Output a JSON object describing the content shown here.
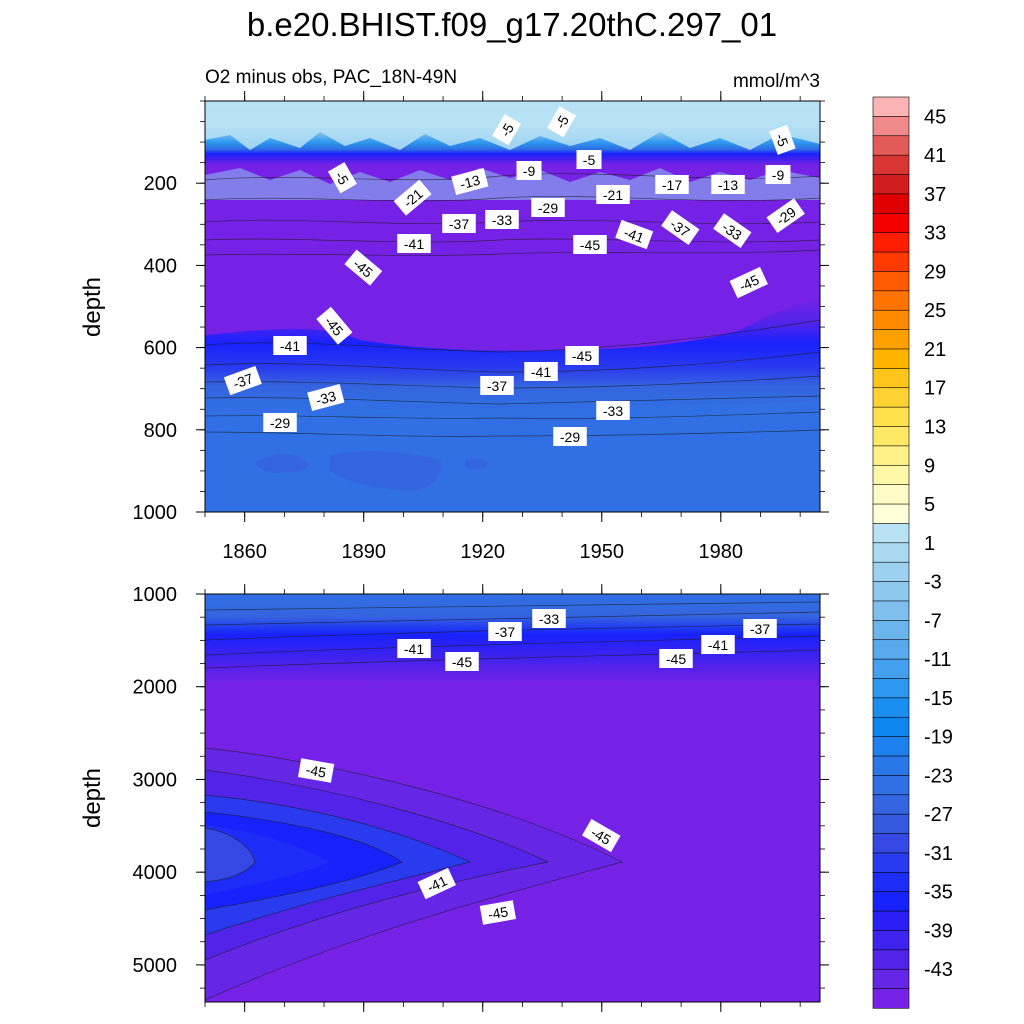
{
  "title": "b.e20.BHIST.f09_g17.20thC.297_01",
  "chart_data": {
    "type": "heatmap",
    "left_subtitle": "O2 minus obs, PAC_18N-49N",
    "right_subtitle": "mmol/m^3",
    "xlabel": "",
    "x_ticks": [
      1860,
      1890,
      1920,
      1950,
      1980
    ],
    "xlim": [
      1850,
      2005
    ],
    "colorbar": {
      "levels": [
        45,
        43,
        41,
        39,
        37,
        35,
        33,
        31,
        29,
        27,
        25,
        23,
        21,
        19,
        17,
        15,
        13,
        11,
        9,
        7,
        5,
        3,
        1,
        -1,
        -3,
        -5,
        -7,
        -9,
        -11,
        -13,
        -15,
        -17,
        -19,
        -21,
        -23,
        -25,
        -27,
        -29,
        -31,
        -33,
        -35,
        -37,
        -39,
        -41,
        -43,
        -45
      ],
      "labels": [
        "45",
        "41",
        "37",
        "33",
        "29",
        "25",
        "21",
        "17",
        "13",
        "9",
        "5",
        "1",
        "-3",
        "-7",
        "-11",
        "-15",
        "-19",
        "-23",
        "-27",
        "-31",
        "-35",
        "-39",
        "-43"
      ],
      "colors": [
        "#fbb3b3",
        "#f08a8a",
        "#e35a5a",
        "#d93535",
        "#d11d1d",
        "#e00000",
        "#f40000",
        "#ff1e00",
        "#ff3a00",
        "#ff5a00",
        "#ff7300",
        "#ff8a00",
        "#ffa000",
        "#ffb400",
        "#ffc51a",
        "#ffd233",
        "#ffe04d",
        "#ffe866",
        "#fff088",
        "#fff7a8",
        "#fffbc6",
        "#ffffd8",
        "#b8e2f4",
        "#abd9f2",
        "#9ed0f0",
        "#8ec8ef",
        "#7ebfee",
        "#6bb5ed",
        "#58aaed",
        "#44a0ee",
        "#2d97f0",
        "#1a8ff0",
        "#0d86f0",
        "#1e80ec",
        "#2a78e8",
        "#3070e4",
        "#3464df",
        "#3658dc",
        "#3548e4",
        "#2a3aee",
        "#1e2cf7",
        "#1822fc",
        "#2a20f5",
        "#3e22ee",
        "#5224ea",
        "#6626e6",
        "#7622e6"
      ]
    },
    "top_panel": {
      "ylabel": "depth",
      "ylim": [
        0,
        1000
      ],
      "y_ticks": [
        200,
        400,
        600,
        800,
        1000
      ],
      "contour_labels": [
        "-5",
        "-5",
        "-5",
        "-5",
        "-5",
        "-9",
        "-9",
        "-13",
        "-13",
        "-17",
        "-21",
        "-21",
        "-29",
        "-29",
        "-33",
        "-33",
        "-37",
        "-37",
        "-41",
        "-41",
        "-45",
        "-45",
        "-45",
        "-45",
        "-45",
        "-41",
        "-37",
        "-33",
        "-29",
        "-41",
        "-37",
        "-33",
        "-29"
      ]
    },
    "bottom_panel": {
      "ylabel": "depth",
      "ylim": [
        1000,
        5400
      ],
      "y_ticks": [
        1000,
        2000,
        3000,
        4000,
        5000
      ],
      "contour_labels": [
        "-33",
        "-37",
        "-41",
        "-45",
        "-45",
        "-41",
        "-37",
        "-45",
        "-45",
        "-41",
        "-45"
      ]
    }
  }
}
